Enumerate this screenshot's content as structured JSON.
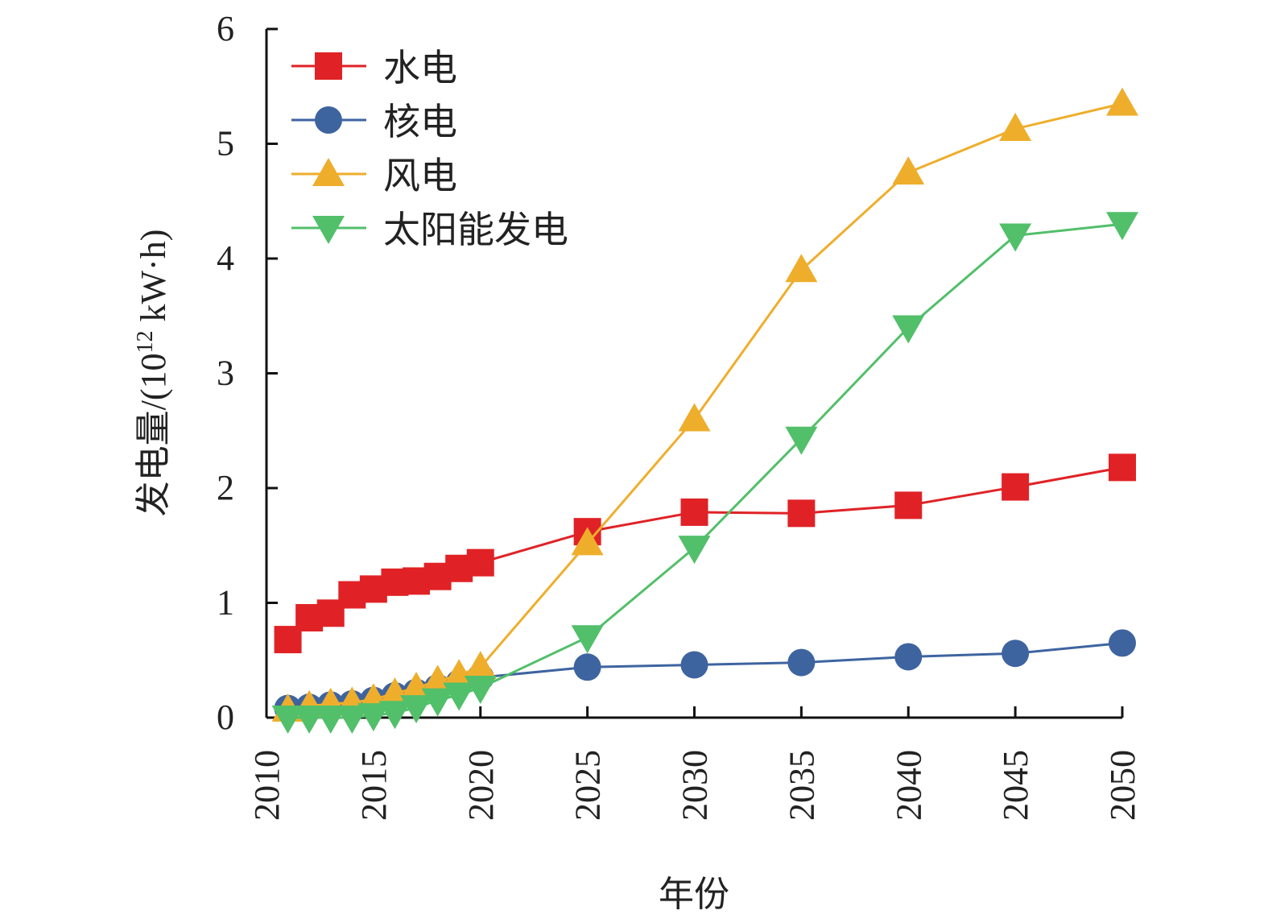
{
  "chart_data": {
    "type": "line",
    "title": "",
    "xlabel": "年份",
    "ylabel": "发电量/(10¹² kW·h)",
    "ylabel_parts": {
      "main": "发电量/(10",
      "sup": "12",
      "unit": " kW·h)"
    },
    "xlim": [
      2010,
      2050
    ],
    "ylim": [
      0,
      6
    ],
    "xticks": [
      2010,
      2015,
      2020,
      2025,
      2030,
      2035,
      2040,
      2045,
      2050
    ],
    "yticks": [
      0,
      1,
      2,
      3,
      4,
      5,
      6
    ],
    "grid": false,
    "legend_position": "top-left",
    "x": [
      2011,
      2012,
      2013,
      2014,
      2015,
      2016,
      2017,
      2018,
      2019,
      2020,
      2025,
      2030,
      2035,
      2040,
      2045,
      2050
    ],
    "series": [
      {
        "name": "水电",
        "color": "#e02226",
        "marker": "square",
        "values": [
          0.68,
          0.87,
          0.91,
          1.07,
          1.12,
          1.18,
          1.19,
          1.23,
          1.3,
          1.35,
          1.62,
          1.79,
          1.78,
          1.85,
          2.01,
          2.18
        ]
      },
      {
        "name": "核电",
        "color": "#3e64a0",
        "marker": "circle",
        "values": [
          0.08,
          0.09,
          0.11,
          0.12,
          0.15,
          0.19,
          0.22,
          0.26,
          0.3,
          0.35,
          0.44,
          0.46,
          0.48,
          0.53,
          0.56,
          0.65
        ]
      },
      {
        "name": "风电",
        "color": "#eeae2c",
        "marker": "triangle-up",
        "values": [
          0.07,
          0.1,
          0.12,
          0.13,
          0.16,
          0.21,
          0.26,
          0.32,
          0.37,
          0.44,
          1.52,
          2.6,
          3.9,
          4.75,
          5.13,
          5.35
        ]
      },
      {
        "name": "太阳能发电",
        "color": "#52bf6a",
        "marker": "triangle-down",
        "values": [
          0.0,
          0.0,
          0.0,
          0.0,
          0.02,
          0.04,
          0.09,
          0.15,
          0.2,
          0.26,
          0.7,
          1.48,
          2.43,
          3.4,
          4.2,
          4.3
        ]
      }
    ]
  }
}
